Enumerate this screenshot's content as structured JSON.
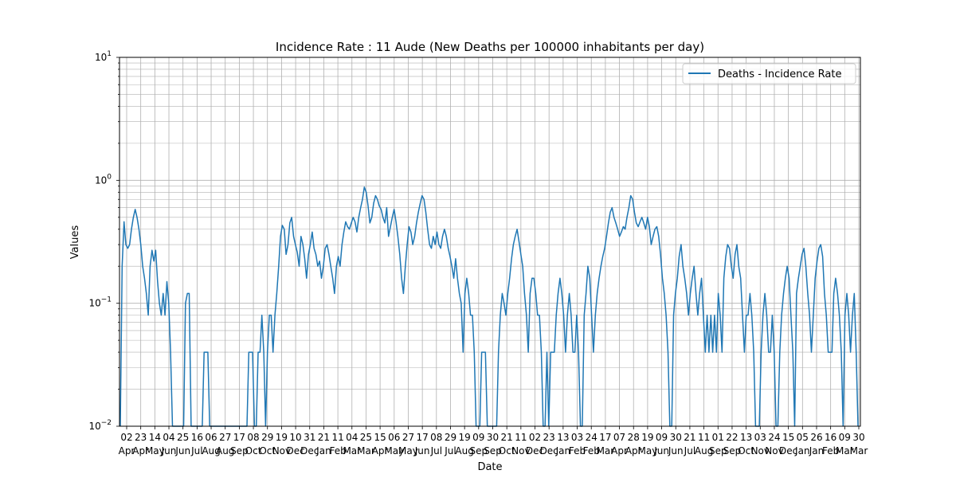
{
  "chart_data": {
    "type": "line",
    "title": "Incidence Rate : 11 Aude (New Deaths per 100000 inhabitants per day)",
    "xlabel": "Date",
    "ylabel": "Values",
    "yscale": "log",
    "ylim": [
      0.01,
      10
    ],
    "grid": true,
    "legend_position": "top-right",
    "series_color": "#1f77b4",
    "y_ticks": [
      {
        "value": 0.01,
        "label": "10"
      },
      {
        "value": 0.1,
        "label": "10"
      },
      {
        "value": 1,
        "label": "10"
      },
      {
        "value": 10,
        "label": "10"
      }
    ],
    "y_tick_exponents": [
      "−2",
      "−1",
      "0",
      "1"
    ],
    "x_ticks": [
      {
        "day": "02",
        "month": "Apr"
      },
      {
        "day": "23",
        "month": "Apr"
      },
      {
        "day": "14",
        "month": "May"
      },
      {
        "day": "04",
        "month": "Jun"
      },
      {
        "day": "25",
        "month": "Jun"
      },
      {
        "day": "16",
        "month": "Jul"
      },
      {
        "day": "06",
        "month": "Aug"
      },
      {
        "day": "27",
        "month": "Aug"
      },
      {
        "day": "17",
        "month": "Sep"
      },
      {
        "day": "08",
        "month": "Oct"
      },
      {
        "day": "29",
        "month": "Oct"
      },
      {
        "day": "19",
        "month": "Nov"
      },
      {
        "day": "10",
        "month": "Dec"
      },
      {
        "day": "31",
        "month": "Dec"
      },
      {
        "day": "21",
        "month": "Jan"
      },
      {
        "day": "11",
        "month": "Feb"
      },
      {
        "day": "04",
        "month": "Mar"
      },
      {
        "day": "25",
        "month": "Mar"
      },
      {
        "day": "15",
        "month": "Apr"
      },
      {
        "day": "06",
        "month": "May"
      },
      {
        "day": "27",
        "month": "May"
      },
      {
        "day": "17",
        "month": "Jun"
      },
      {
        "day": "08",
        "month": "Jul"
      },
      {
        "day": "29",
        "month": "Jul"
      },
      {
        "day": "19",
        "month": "Aug"
      },
      {
        "day": "09",
        "month": "Sep"
      },
      {
        "day": "30",
        "month": "Sep"
      },
      {
        "day": "21",
        "month": "Oct"
      },
      {
        "day": "11",
        "month": "Nov"
      },
      {
        "day": "02",
        "month": "Dec"
      },
      {
        "day": "23",
        "month": "Dec"
      },
      {
        "day": "13",
        "month": "Jan"
      },
      {
        "day": "03",
        "month": "Feb"
      },
      {
        "day": "24",
        "month": "Feb"
      },
      {
        "day": "17",
        "month": "Mar"
      },
      {
        "day": "07",
        "month": "Apr"
      },
      {
        "day": "28",
        "month": "Apr"
      },
      {
        "day": "19",
        "month": "May"
      },
      {
        "day": "09",
        "month": "Jun"
      },
      {
        "day": "30",
        "month": "Jun"
      },
      {
        "day": "21",
        "month": "Jul"
      },
      {
        "day": "11",
        "month": "Aug"
      },
      {
        "day": "01",
        "month": "Sep"
      },
      {
        "day": "22",
        "month": "Sep"
      },
      {
        "day": "13",
        "month": "Oct"
      },
      {
        "day": "03",
        "month": "Nov"
      },
      {
        "day": "24",
        "month": "Nov"
      },
      {
        "day": "15",
        "month": "Dec"
      },
      {
        "day": "05",
        "month": "Jan"
      },
      {
        "day": "26",
        "month": "Jan"
      },
      {
        "day": "16",
        "month": "Feb"
      },
      {
        "day": "09",
        "month": "Mar"
      },
      {
        "day": "30",
        "month": "Mar"
      }
    ],
    "series": [
      {
        "name": "Deaths - Incidence Rate",
        "values": [
          0.01,
          0.2,
          0.46,
          0.3,
          0.28,
          0.3,
          0.4,
          0.5,
          0.58,
          0.5,
          0.4,
          0.3,
          0.2,
          0.16,
          0.12,
          0.08,
          0.2,
          0.27,
          0.22,
          0.27,
          0.15,
          0.1,
          0.08,
          0.12,
          0.08,
          0.15,
          0.1,
          0.04,
          0.01,
          0.01,
          0.01,
          0.01,
          0.01,
          0.01,
          0.01,
          0.1,
          0.12,
          0.12,
          0.01,
          0.01,
          0.01,
          0.01,
          0.01,
          0.01,
          0.01,
          0.04,
          0.04,
          0.04,
          0.01,
          0.01,
          0.01,
          0.01,
          0.01,
          0.01,
          0.01,
          0.01,
          0.01,
          0.01,
          0.01,
          0.01,
          0.01,
          0.01,
          0.01,
          0.01,
          0.01,
          0.01,
          0.01,
          0.01,
          0.01,
          0.04,
          0.04,
          0.04,
          0.01,
          0.01,
          0.04,
          0.04,
          0.08,
          0.04,
          0.01,
          0.04,
          0.08,
          0.08,
          0.04,
          0.08,
          0.12,
          0.2,
          0.35,
          0.43,
          0.4,
          0.25,
          0.3,
          0.45,
          0.5,
          0.35,
          0.3,
          0.26,
          0.2,
          0.35,
          0.3,
          0.23,
          0.16,
          0.25,
          0.3,
          0.38,
          0.28,
          0.25,
          0.2,
          0.22,
          0.16,
          0.2,
          0.28,
          0.3,
          0.25,
          0.2,
          0.16,
          0.12,
          0.2,
          0.24,
          0.2,
          0.3,
          0.38,
          0.46,
          0.42,
          0.4,
          0.45,
          0.5,
          0.46,
          0.38,
          0.5,
          0.6,
          0.7,
          0.88,
          0.8,
          0.62,
          0.45,
          0.5,
          0.65,
          0.75,
          0.7,
          0.62,
          0.58,
          0.5,
          0.45,
          0.6,
          0.35,
          0.42,
          0.5,
          0.58,
          0.46,
          0.35,
          0.25,
          0.16,
          0.12,
          0.2,
          0.3,
          0.42,
          0.38,
          0.3,
          0.35,
          0.45,
          0.55,
          0.65,
          0.75,
          0.7,
          0.55,
          0.4,
          0.3,
          0.28,
          0.35,
          0.3,
          0.38,
          0.3,
          0.28,
          0.35,
          0.4,
          0.35,
          0.28,
          0.24,
          0.2,
          0.16,
          0.23,
          0.16,
          0.12,
          0.1,
          0.04,
          0.12,
          0.16,
          0.12,
          0.08,
          0.08,
          0.04,
          0.01,
          0.01,
          0.01,
          0.04,
          0.04,
          0.04,
          0.01,
          0.01,
          0.01,
          0.01,
          0.01,
          0.01,
          0.04,
          0.08,
          0.12,
          0.1,
          0.08,
          0.12,
          0.16,
          0.23,
          0.3,
          0.35,
          0.4,
          0.32,
          0.25,
          0.2,
          0.12,
          0.08,
          0.04,
          0.12,
          0.16,
          0.16,
          0.12,
          0.08,
          0.08,
          0.04,
          0.01,
          0.01,
          0.04,
          0.01,
          0.04,
          0.04,
          0.04,
          0.08,
          0.12,
          0.16,
          0.12,
          0.08,
          0.04,
          0.08,
          0.12,
          0.08,
          0.04,
          0.04,
          0.08,
          0.04,
          0.01,
          0.01,
          0.08,
          0.12,
          0.2,
          0.16,
          0.08,
          0.04,
          0.08,
          0.12,
          0.16,
          0.2,
          0.24,
          0.28,
          0.35,
          0.45,
          0.55,
          0.6,
          0.5,
          0.45,
          0.4,
          0.35,
          0.38,
          0.42,
          0.4,
          0.5,
          0.6,
          0.75,
          0.7,
          0.55,
          0.45,
          0.42,
          0.46,
          0.5,
          0.45,
          0.4,
          0.5,
          0.42,
          0.3,
          0.35,
          0.4,
          0.42,
          0.35,
          0.25,
          0.16,
          0.12,
          0.08,
          0.04,
          0.01,
          0.01,
          0.08,
          0.12,
          0.16,
          0.24,
          0.3,
          0.2,
          0.16,
          0.12,
          0.08,
          0.12,
          0.16,
          0.2,
          0.12,
          0.08,
          0.12,
          0.16,
          0.08,
          0.04,
          0.08,
          0.04,
          0.08,
          0.04,
          0.08,
          0.04,
          0.12,
          0.08,
          0.04,
          0.16,
          0.24,
          0.3,
          0.28,
          0.2,
          0.16,
          0.25,
          0.3,
          0.2,
          0.16,
          0.08,
          0.04,
          0.08,
          0.08,
          0.12,
          0.08,
          0.04,
          0.01,
          0.01,
          0.01,
          0.04,
          0.08,
          0.12,
          0.08,
          0.04,
          0.04,
          0.08,
          0.04,
          0.01,
          0.01,
          0.04,
          0.08,
          0.12,
          0.16,
          0.2,
          0.16,
          0.08,
          0.04,
          0.01,
          0.12,
          0.16,
          0.2,
          0.25,
          0.28,
          0.2,
          0.12,
          0.08,
          0.04,
          0.08,
          0.16,
          0.22,
          0.28,
          0.3,
          0.24,
          0.12,
          0.08,
          0.04,
          0.04,
          0.04,
          0.12,
          0.16,
          0.12,
          0.08,
          0.04,
          0.01,
          0.08,
          0.12,
          0.08,
          0.04,
          0.08,
          0.12,
          0.04,
          0.01
        ]
      }
    ]
  }
}
